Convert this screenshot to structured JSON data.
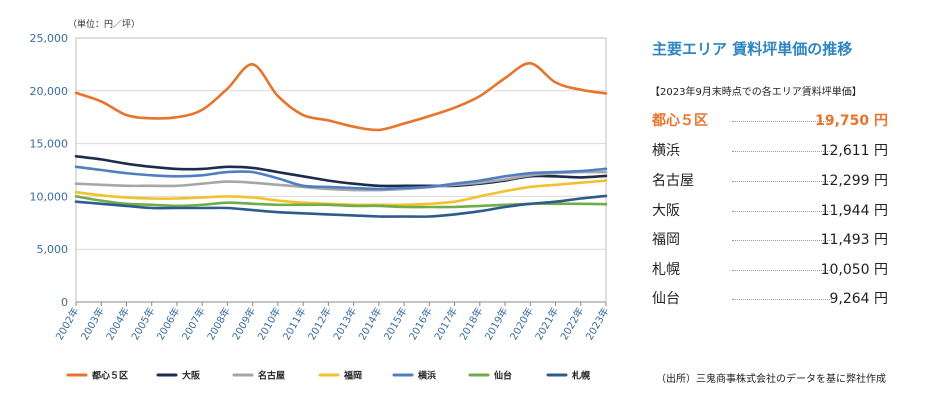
{
  "chart_data": {
    "type": "line",
    "unit_label": "（単位：円／坪）",
    "x": [
      2002,
      2003,
      2004,
      2005,
      2006,
      2007,
      2008,
      2009,
      2010,
      2011,
      2012,
      2013,
      2014,
      2015,
      2016,
      2017,
      2018,
      2019,
      2020,
      2021,
      2022,
      2023
    ],
    "x_tick_labels": [
      "2002年",
      "2003年",
      "2004年",
      "2005年",
      "2006年",
      "2007年",
      "2008年",
      "2009年",
      "2010年",
      "2011年",
      "2012年",
      "2013年",
      "2014年",
      "2015年",
      "2016年",
      "2017年",
      "2018年",
      "2019年",
      "2020年",
      "2021年",
      "2022年",
      "2023年"
    ],
    "ylim": [
      0,
      25000
    ],
    "y_ticks": [
      0,
      5000,
      10000,
      15000,
      20000,
      25000
    ],
    "y_tick_labels": [
      "0",
      "5,000",
      "10,000",
      "15,000",
      "20,000",
      "25,000"
    ],
    "grid": "horizontal",
    "series": [
      {
        "name": "都心５区",
        "color": "#e8732a",
        "values": [
          19800,
          19000,
          17700,
          17400,
          17500,
          18200,
          20200,
          22500,
          19500,
          17700,
          17200,
          16600,
          16300,
          16900,
          17600,
          18400,
          19500,
          21200,
          22600,
          20800,
          20100,
          19750
        ]
      },
      {
        "name": "大阪",
        "color": "#1d2c4c",
        "values": [
          13800,
          13500,
          13100,
          12800,
          12600,
          12600,
          12800,
          12700,
          12300,
          11900,
          11500,
          11200,
          11000,
          11000,
          11000,
          11000,
          11200,
          11500,
          11900,
          11900,
          11800,
          11944
        ]
      },
      {
        "name": "名古屋",
        "color": "#a6a6a6",
        "values": [
          11200,
          11100,
          11000,
          11000,
          11000,
          11200,
          11400,
          11300,
          11100,
          10900,
          10700,
          10600,
          10600,
          10700,
          10900,
          11100,
          11300,
          11600,
          12000,
          12200,
          12300,
          12299
        ]
      },
      {
        "name": "福岡",
        "color": "#f2c12e",
        "values": [
          10400,
          10100,
          9900,
          9800,
          9800,
          9900,
          10000,
          9900,
          9600,
          9400,
          9300,
          9200,
          9200,
          9200,
          9300,
          9500,
          10000,
          10500,
          10900,
          11100,
          11300,
          11493
        ]
      },
      {
        "name": "横浜",
        "color": "#4f7fc2",
        "values": [
          12800,
          12500,
          12200,
          12000,
          11900,
          12000,
          12300,
          12300,
          11700,
          11000,
          10900,
          10800,
          10700,
          10800,
          10900,
          11200,
          11500,
          11900,
          12200,
          12300,
          12400,
          12611
        ]
      },
      {
        "name": "仙台",
        "color": "#70ad47",
        "values": [
          10000,
          9600,
          9300,
          9200,
          9100,
          9200,
          9400,
          9300,
          9200,
          9200,
          9200,
          9100,
          9100,
          9000,
          9000,
          9000,
          9100,
          9200,
          9300,
          9300,
          9300,
          9264
        ]
      },
      {
        "name": "札幌",
        "color": "#2d5b8e",
        "values": [
          9500,
          9300,
          9100,
          8900,
          8900,
          8900,
          8900,
          8700,
          8500,
          8400,
          8300,
          8200,
          8100,
          8100,
          8100,
          8300,
          8600,
          9000,
          9300,
          9500,
          9800,
          10050
        ]
      }
    ],
    "legend_position": "bottom"
  },
  "side_panel": {
    "title": "主要エリア 賃料坪単価の推移",
    "subtitle": "【2023年9月末時点での各エリア賃料坪単価】",
    "ranking": [
      {
        "area": "都心５区",
        "value": "19,750 円"
      },
      {
        "area": "横浜",
        "value": "12,611 円"
      },
      {
        "area": "名古屋",
        "value": "12,299 円"
      },
      {
        "area": "大阪",
        "value": "11,944 円"
      },
      {
        "area": "福岡",
        "value": "11,493 円"
      },
      {
        "area": "札幌",
        "value": "10,050 円"
      },
      {
        "area": "仙台",
        "value": "9,264 円"
      }
    ],
    "highlight_color": "#e8732a"
  },
  "source_note": "（出所）三鬼商事株式会社のデータを基に弊社作成"
}
